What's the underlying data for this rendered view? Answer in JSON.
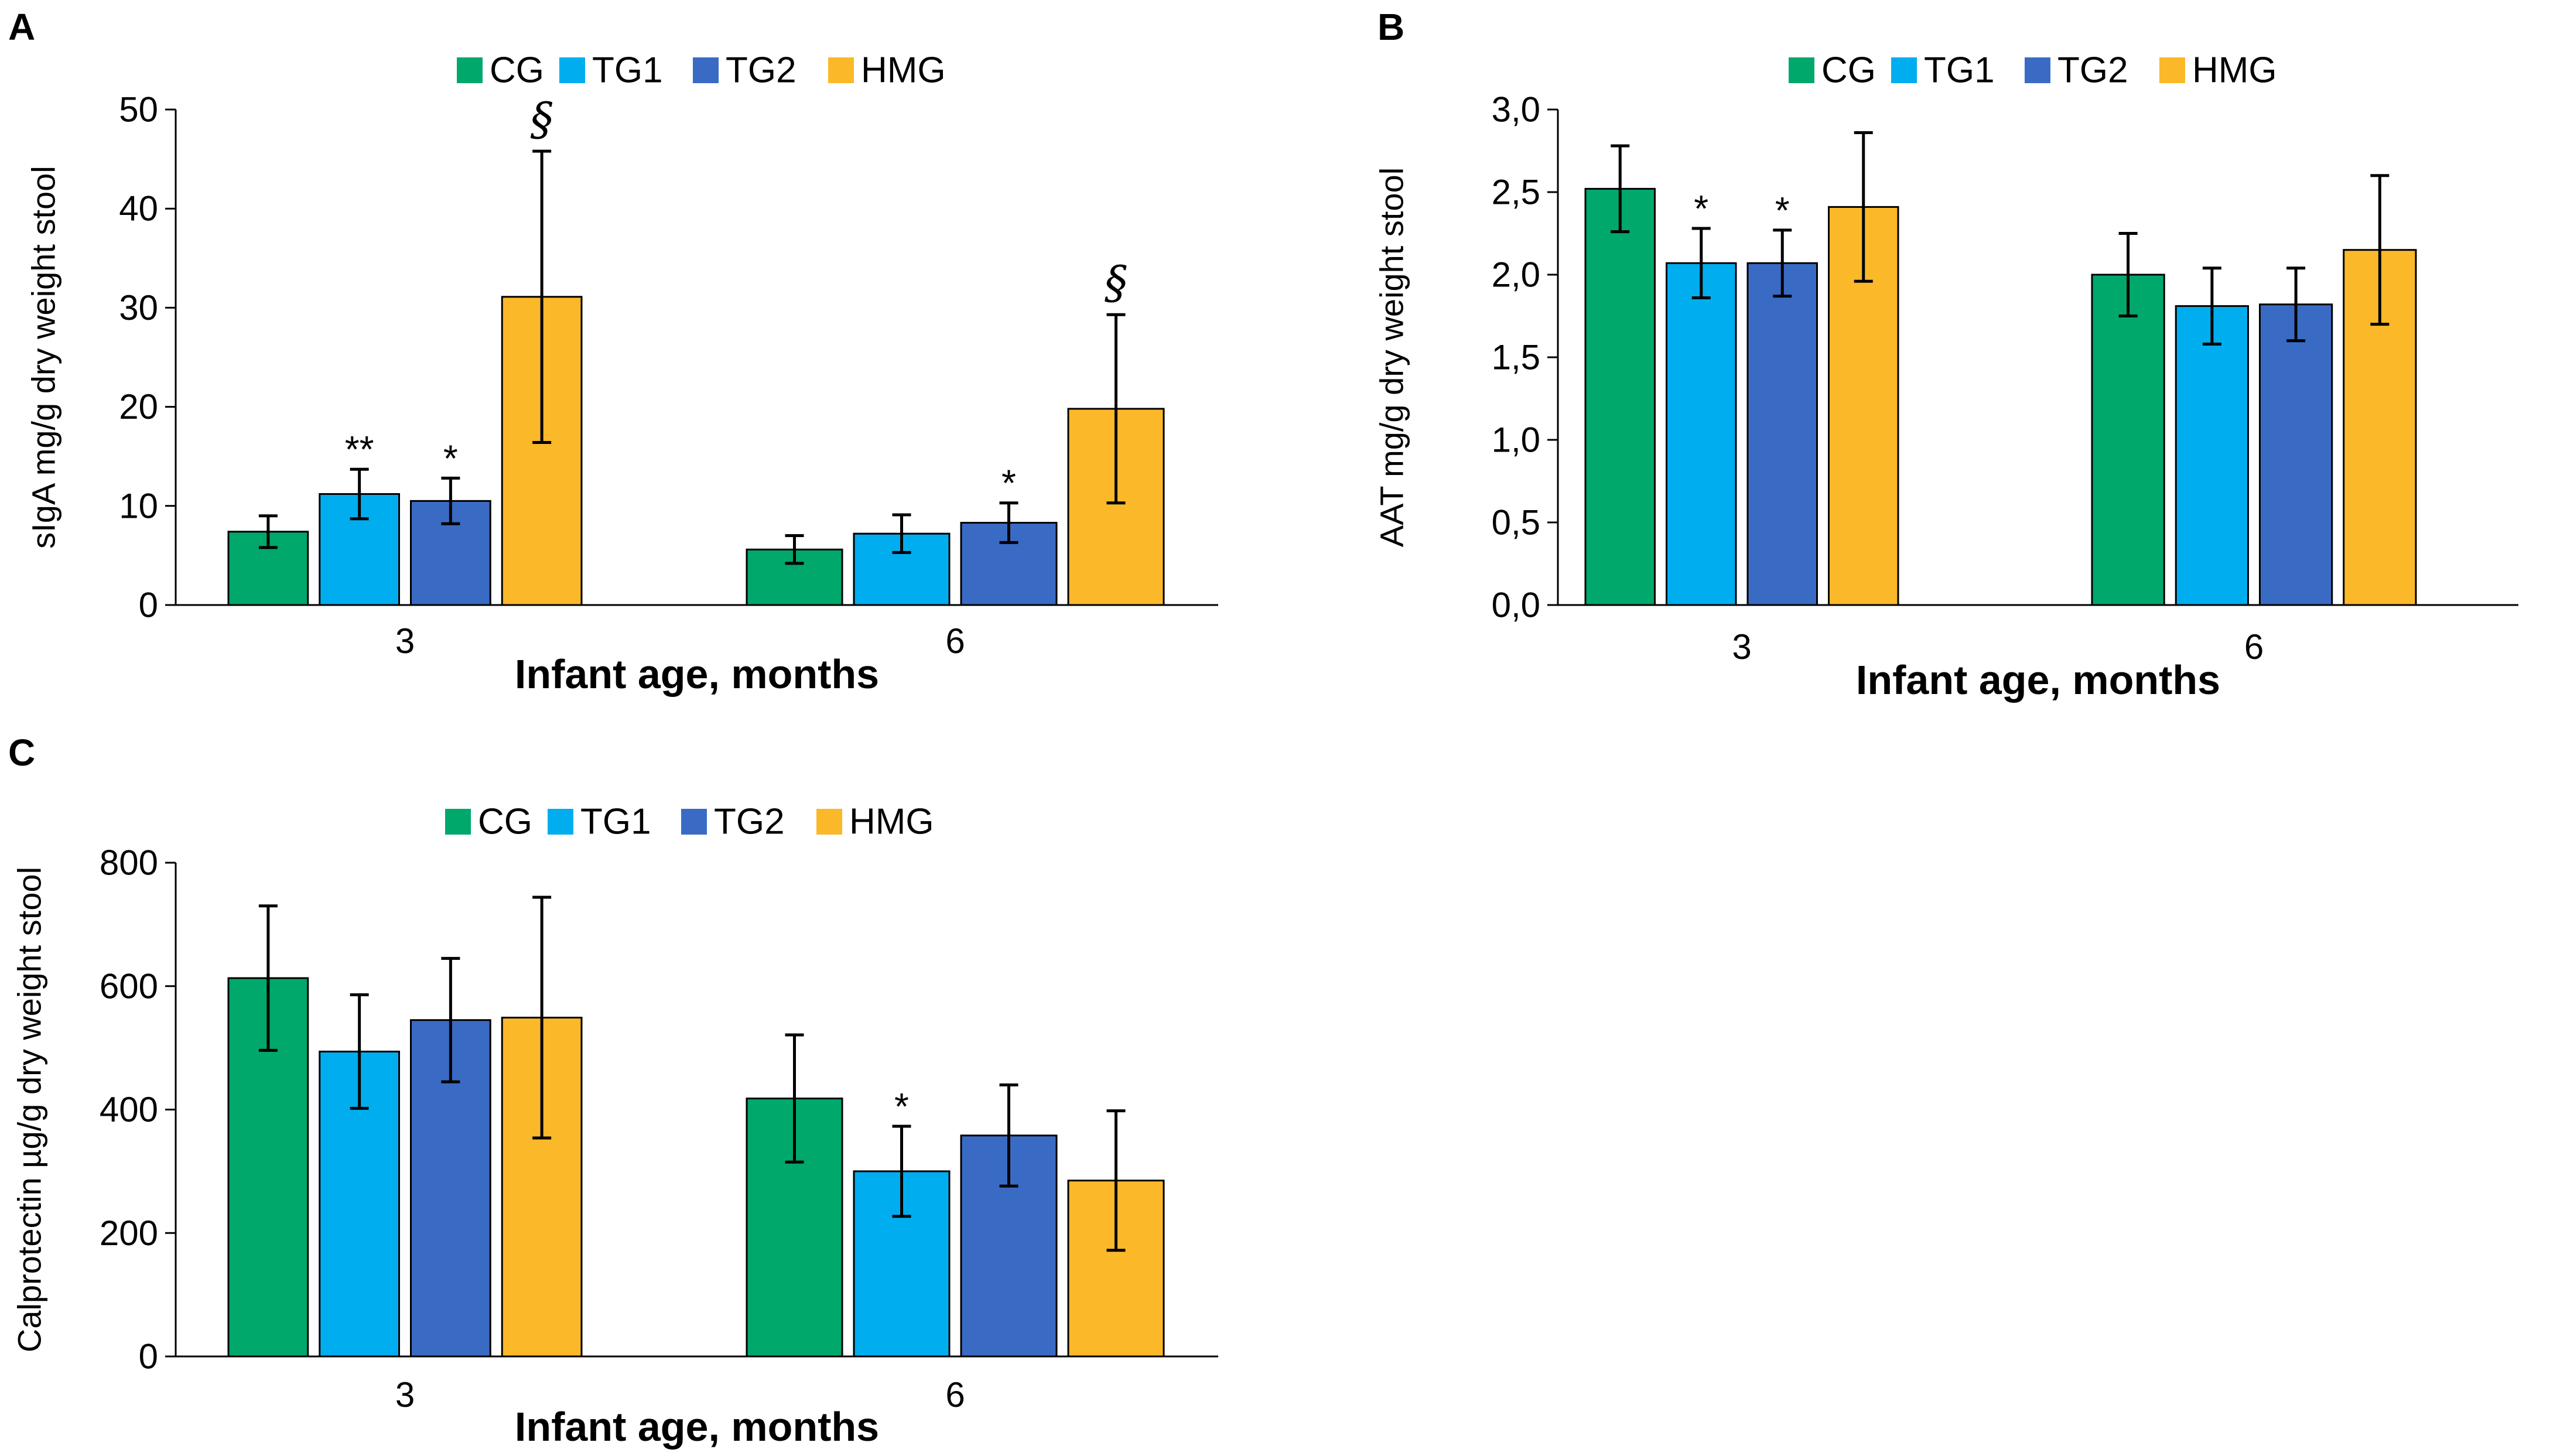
{
  "colors": {
    "CG": "#00a86b",
    "TG1": "#00aeef",
    "TG2": "#3a6bc4",
    "HMG": "#fbb829",
    "axis": "#000000",
    "error_bar": "#000000"
  },
  "chart_data": [
    {
      "type": "bar",
      "panel": "A",
      "categories": [
        "3",
        "6"
      ],
      "series": [
        {
          "name": "CG",
          "values": [
            7.4,
            5.6
          ],
          "errors": [
            1.6,
            1.4
          ]
        },
        {
          "name": "TG1",
          "values": [
            11.2,
            7.2
          ],
          "errors": [
            2.5,
            1.9
          ]
        },
        {
          "name": "TG2",
          "values": [
            10.5,
            8.3
          ],
          "errors": [
            2.3,
            2.0
          ]
        },
        {
          "name": "HMG",
          "values": [
            31.1,
            19.8
          ],
          "errors": [
            14.7,
            9.5
          ]
        }
      ],
      "annotations": [
        {
          "category": "3",
          "series": "TG1",
          "text": "**"
        },
        {
          "category": "3",
          "series": "TG2",
          "text": "*"
        },
        {
          "category": "3",
          "series": "HMG",
          "text": "§"
        },
        {
          "category": "6",
          "series": "TG2",
          "text": "*"
        },
        {
          "category": "6",
          "series": "HMG",
          "text": "§"
        }
      ],
      "ylim": [
        0,
        50
      ],
      "yticks": [
        "0",
        "10",
        "20",
        "30",
        "40",
        "50"
      ],
      "xlabel": "Infant age, months",
      "ylabel": "sIgA mg/g dry weight stool",
      "legend": "top-center",
      "grid": false
    },
    {
      "type": "bar",
      "panel": "B",
      "categories": [
        "3",
        "6"
      ],
      "series": [
        {
          "name": "CG",
          "values": [
            2.52,
            2.0
          ],
          "errors": [
            0.26,
            0.25
          ]
        },
        {
          "name": "TG1",
          "values": [
            2.07,
            1.81
          ],
          "errors": [
            0.21,
            0.23
          ]
        },
        {
          "name": "TG2",
          "values": [
            2.07,
            1.82
          ],
          "errors": [
            0.2,
            0.22
          ]
        },
        {
          "name": "HMG",
          "values": [
            2.41,
            2.15
          ],
          "errors": [
            0.45,
            0.45
          ]
        }
      ],
      "annotations": [
        {
          "category": "3",
          "series": "TG1",
          "text": "*"
        },
        {
          "category": "3",
          "series": "TG2",
          "text": "*"
        }
      ],
      "ylim": [
        0,
        3
      ],
      "yticks": [
        "0,0",
        "0,5",
        "1,0",
        "1,5",
        "2,0",
        "2,5",
        "3,0"
      ],
      "xlabel": "Infant age, months",
      "ylabel": "AAT mg/g dry weight stool",
      "legend": "top-center",
      "grid": false
    },
    {
      "type": "bar",
      "panel": "C",
      "categories": [
        "3",
        "6"
      ],
      "series": [
        {
          "name": "CG",
          "values": [
            613,
            418
          ],
          "errors": [
            117,
            103
          ]
        },
        {
          "name": "TG1",
          "values": [
            494,
            300
          ],
          "errors": [
            92,
            73
          ]
        },
        {
          "name": "TG2",
          "values": [
            545,
            358
          ],
          "errors": [
            100,
            82
          ]
        },
        {
          "name": "HMG",
          "values": [
            549,
            285
          ],
          "errors": [
            195,
            113
          ]
        }
      ],
      "annotations": [
        {
          "category": "6",
          "series": "TG1",
          "text": "*"
        }
      ],
      "ylim": [
        0,
        800
      ],
      "yticks": [
        "0",
        "200",
        "400",
        "600",
        "800"
      ],
      "xlabel": "Infant age, months",
      "ylabel": "Calprotectin µg/g dry weight stool",
      "legend": "top-center",
      "grid": false
    }
  ]
}
